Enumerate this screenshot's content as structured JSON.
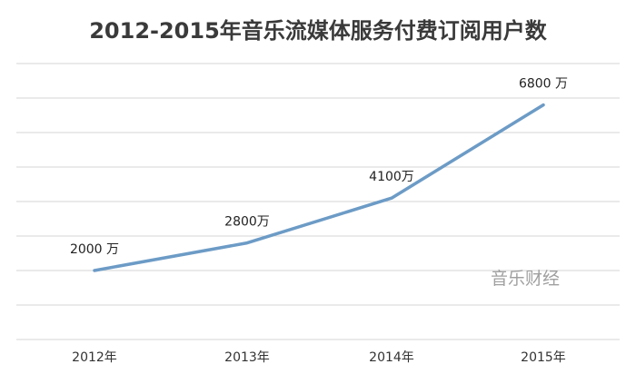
{
  "chart_data": {
    "type": "line",
    "title": "2012-2015年音乐流媒体服务付费订阅用户数",
    "xlabel": "",
    "ylabel": "",
    "categories": [
      "2012年",
      "2013年",
      "2014年",
      "2015年"
    ],
    "series": [
      {
        "values": [
          2000,
          2800,
          4100,
          6800
        ],
        "labels": [
          "2000 万",
          "2800万",
          "4100万",
          "6800 万"
        ],
        "color": "#6c9bc6"
      }
    ],
    "ylim": [
      0,
      8000
    ],
    "grid": true,
    "legend": "none",
    "watermark": "音乐财经"
  }
}
